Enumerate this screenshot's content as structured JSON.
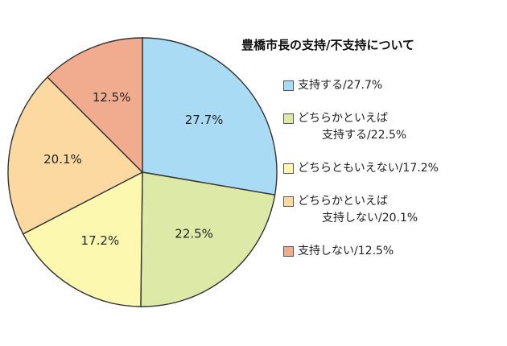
{
  "chart_data": {
    "type": "pie",
    "title": "豊橋市長の支持/不支持について",
    "start_angle_deg": 0,
    "direction": "clockwise",
    "slices": [
      {
        "label_lines": [
          "支持する/27.7%"
        ],
        "value": 27.7,
        "value_label": "27.7%",
        "color": "#a9dcf4"
      },
      {
        "label_lines": [
          "どちらかといえば",
          "支持する/22.5%"
        ],
        "value": 22.5,
        "value_label": "22.5%",
        "color": "#dde9a6"
      },
      {
        "label_lines": [
          "どちらともいえない/17.2%"
        ],
        "value": 17.2,
        "value_label": "17.2%",
        "color": "#fdf8b0"
      },
      {
        "label_lines": [
          "どちらかといえば",
          "支持しない/20.1%"
        ],
        "value": 20.1,
        "value_label": "20.1%",
        "color": "#fbd9a1"
      },
      {
        "label_lines": [
          "支持しない/12.5%"
        ],
        "value": 12.5,
        "value_label": "12.5%",
        "color": "#f1ac8f"
      }
    ]
  }
}
